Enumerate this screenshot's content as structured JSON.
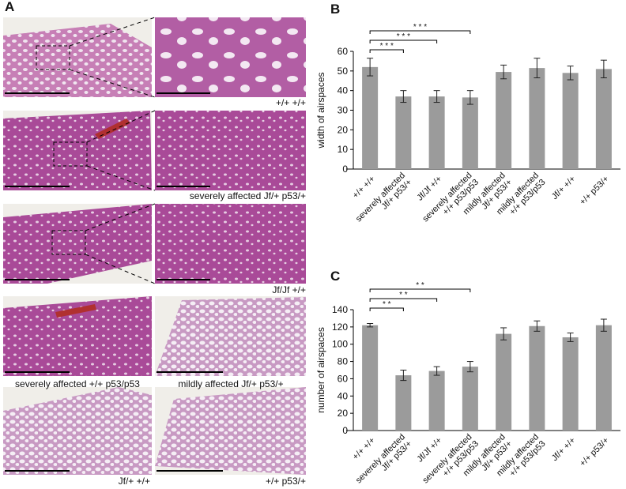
{
  "panel_a": {
    "label": "A",
    "captions": [
      "+/+ +/+",
      "severely affected Jf/+ p53/+",
      "Jf/Jf +/+",
      "severely affected +/+ p53/p53",
      "mildly affected Jf/+ p53/+",
      "Jf/+ +/+",
      "+/+ p53/+"
    ]
  },
  "chart_data": [
    {
      "type": "bar",
      "label": "B",
      "ylabel": "width of airspaces",
      "color": "#9b9b9b",
      "categories": [
        "+/+ +/+",
        "severely affected\nJf/+ p53/+",
        "Jf/Jf +/+",
        "severely affected\n+/+ p53/p53",
        "mildly affected\nJf/+ p53/+",
        "mildly affected\n+/+ p53/p53",
        "Jf/+ +/+",
        "+/+ p53/+"
      ],
      "values": [
        52,
        37,
        37,
        36.5,
        49.5,
        51.5,
        49,
        51
      ],
      "errors": [
        4.5,
        3,
        3,
        3.5,
        3.5,
        5,
        3.5,
        4.5
      ],
      "ylim": [
        0,
        60
      ],
      "yticks": [
        0,
        10,
        20,
        30,
        40,
        50,
        60
      ],
      "comparisons": [
        {
          "from": 0,
          "to": 1,
          "text": "* * *"
        },
        {
          "from": 0,
          "to": 2,
          "text": "* * *"
        },
        {
          "from": 0,
          "to": 3,
          "text": "* * *"
        }
      ]
    },
    {
      "type": "bar",
      "label": "C",
      "ylabel": "number of airspaces",
      "color": "#9b9b9b",
      "categories": [
        "+/+ +/+",
        "severely affected\nJf/+ p53/+",
        "Jf/Jf +/+",
        "severely affected\n+/+ p53/p53",
        "mildly affected\nJf/+ p53/+",
        "mildly affected\n+/+ p53/p53",
        "Jf/+ +/+",
        "+/+ p53/+"
      ],
      "values": [
        122,
        64,
        69,
        74,
        112,
        121,
        108,
        122
      ],
      "errors": [
        2,
        6,
        5,
        6,
        7,
        6,
        5,
        7
      ],
      "ylim": [
        0,
        140
      ],
      "yticks": [
        0,
        20,
        40,
        60,
        80,
        100,
        120,
        140
      ],
      "comparisons": [
        {
          "from": 0,
          "to": 1,
          "text": "* *"
        },
        {
          "from": 0,
          "to": 2,
          "text": "* *"
        },
        {
          "from": 0,
          "to": 3,
          "text": "* *"
        }
      ]
    }
  ]
}
